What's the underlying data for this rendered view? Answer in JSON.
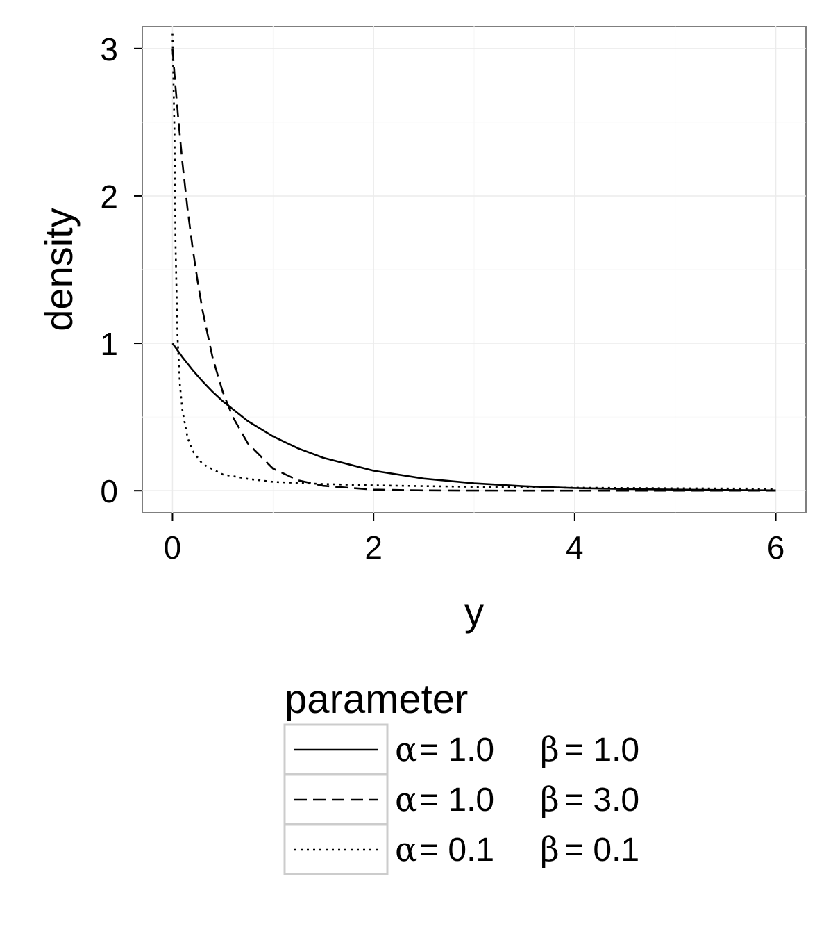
{
  "chart_data": {
    "type": "line",
    "title": "",
    "xlabel": "y",
    "ylabel": "density",
    "xlim": [
      -0.3,
      6.3
    ],
    "ylim": [
      -0.15,
      3.15
    ],
    "xticks": [
      0,
      2,
      4,
      6
    ],
    "xtick_labels": [
      "0",
      "2",
      "4",
      "6"
    ],
    "yticks": [
      0,
      1,
      2,
      3
    ],
    "ytick_labels": [
      "0",
      "1",
      "2",
      "3"
    ],
    "grid": true,
    "legend": {
      "title": "parameter",
      "position": "bottom",
      "entries": [
        {
          "alpha_symbol": "α",
          "alpha_value": "= 1.0",
          "beta_symbol": "β",
          "beta_value": "= 1.0",
          "linetype": "solid"
        },
        {
          "alpha_symbol": "α",
          "alpha_value": "= 1.0",
          "beta_symbol": "β",
          "beta_value": "= 3.0",
          "linetype": "dashed"
        },
        {
          "alpha_symbol": "α",
          "alpha_value": "= 0.1",
          "beta_symbol": "β",
          "beta_value": "= 0.1",
          "linetype": "dotted"
        }
      ]
    },
    "series": [
      {
        "name": "α = 1.0  β = 1.0",
        "linetype": "solid",
        "x": [
          0,
          0.1,
          0.2,
          0.3,
          0.4,
          0.5,
          0.75,
          1,
          1.25,
          1.5,
          2,
          2.5,
          3,
          3.5,
          4,
          4.5,
          5,
          5.5,
          6
        ],
        "y": [
          1.0,
          0.905,
          0.819,
          0.741,
          0.67,
          0.607,
          0.472,
          0.368,
          0.287,
          0.223,
          0.135,
          0.082,
          0.05,
          0.03,
          0.018,
          0.011,
          0.007,
          0.004,
          0.002
        ]
      },
      {
        "name": "α = 1.0  β = 3.0",
        "linetype": "dashed",
        "x": [
          0,
          0.03,
          0.06,
          0.1,
          0.15,
          0.2,
          0.25,
          0.3,
          0.4,
          0.5,
          0.6,
          0.75,
          1,
          1.25,
          1.5,
          2,
          2.5,
          3,
          4,
          5,
          6
        ],
        "y": [
          3.0,
          2.74,
          2.51,
          2.22,
          1.91,
          1.65,
          1.42,
          1.22,
          0.9,
          0.67,
          0.5,
          0.32,
          0.15,
          0.07,
          0.033,
          0.007,
          0.002,
          0.0004,
          0.0,
          0.0,
          0.0
        ]
      },
      {
        "name": "α = 0.1  β = 0.1",
        "linetype": "dotted",
        "x": [
          0,
          0.02,
          0.03,
          0.05,
          0.075,
          0.1,
          0.15,
          0.2,
          0.3,
          0.5,
          0.75,
          1,
          1.5,
          2,
          3,
          4,
          5,
          6
        ],
        "y": [
          3.1,
          2.42,
          1.68,
          1.05,
          0.71,
          0.54,
          0.36,
          0.27,
          0.18,
          0.11,
          0.08,
          0.06,
          0.045,
          0.036,
          0.026,
          0.02,
          0.016,
          0.013
        ]
      }
    ]
  }
}
